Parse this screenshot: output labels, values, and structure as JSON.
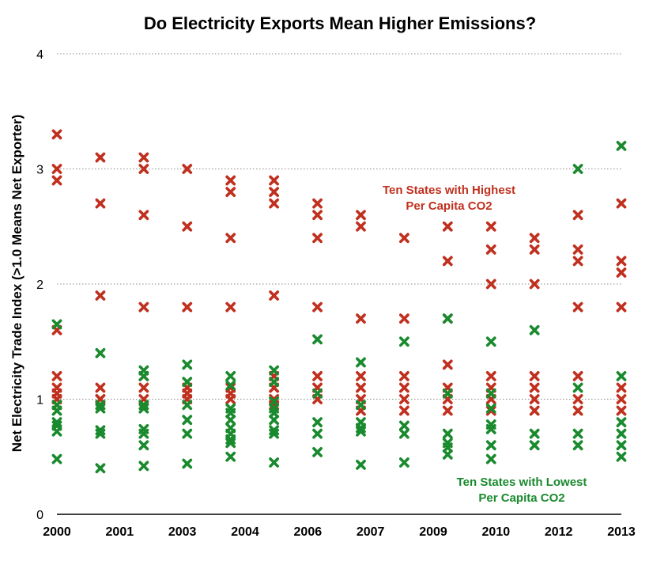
{
  "chart_data": {
    "type": "scatter",
    "title": "Do Electricity Exports Mean Higher Emissions?",
    "xlabel": "",
    "ylabel": "Net Electricity Trade Index (>1.0 Means Net Exporter)",
    "ylim": [
      0,
      4
    ],
    "yticks": [
      "0",
      "1",
      "2",
      "3",
      "4"
    ],
    "categories": [
      "2000",
      "2001",
      "2003",
      "2004",
      "2006",
      "2007",
      "2009",
      "2010",
      "2012",
      "2013"
    ],
    "x": [
      2000,
      2001,
      2002,
      2003,
      2004,
      2005,
      2006,
      2007,
      2008,
      2009,
      2010,
      2011,
      2012,
      2013
    ],
    "grid": true,
    "annotations": [
      {
        "lines": [
          "Ten States with Highest",
          "Per Capita CO2"
        ],
        "color": "#c0301e"
      },
      {
        "lines": [
          "Ten States with Lowest",
          "Per Capita CO2"
        ],
        "color": "#1a8a2e"
      }
    ],
    "series": [
      {
        "color": "#c0301e",
        "points": [
          [
            2000,
            [
              3.3,
              3.0,
              2.9,
              1.6,
              1.2,
              1.1,
              1.05,
              1.0,
              1.0,
              0.95
            ]
          ],
          [
            2001,
            [
              3.1,
              2.7,
              1.9,
              1.1,
              1.0,
              1.0,
              0.95
            ]
          ],
          [
            2002,
            [
              3.1,
              3.0,
              2.6,
              1.8,
              1.2,
              1.1,
              1.0,
              0.95
            ]
          ],
          [
            2003,
            [
              3.0,
              2.5,
              1.8,
              1.1,
              1.05,
              1.0
            ]
          ],
          [
            2004,
            [
              2.9,
              2.8,
              2.4,
              1.8,
              1.1,
              1.05,
              1.0
            ]
          ],
          [
            2005,
            [
              2.9,
              2.8,
              2.7,
              1.9,
              1.2,
              1.1,
              1.0,
              0.95
            ]
          ],
          [
            2006,
            [
              2.7,
              2.6,
              2.4,
              1.8,
              1.2,
              1.1,
              1.0
            ]
          ],
          [
            2007,
            [
              2.6,
              2.5,
              1.7,
              1.2,
              1.1,
              1.0,
              0.9
            ]
          ],
          [
            2008,
            [
              2.4,
              1.7,
              1.2,
              1.1,
              1.0,
              0.9
            ]
          ],
          [
            2009,
            [
              2.5,
              2.2,
              1.7,
              1.3,
              1.1,
              1.0,
              0.9
            ]
          ],
          [
            2010,
            [
              2.5,
              2.3,
              2.0,
              1.2,
              1.1,
              1.0,
              0.9
            ]
          ],
          [
            2011,
            [
              2.4,
              2.3,
              2.0,
              1.2,
              1.1,
              1.0,
              0.9
            ]
          ],
          [
            2012,
            [
              2.6,
              2.3,
              2.2,
              1.8,
              1.2,
              1.0,
              0.9
            ]
          ],
          [
            2013,
            [
              2.7,
              2.2,
              2.1,
              1.8,
              1.1,
              1.0,
              0.9
            ]
          ]
        ]
      },
      {
        "color": "#1a8a2e",
        "points": [
          [
            2000,
            [
              1.65,
              0.95,
              0.9,
              0.8,
              0.77,
              0.72,
              0.48
            ]
          ],
          [
            2001,
            [
              1.4,
              0.95,
              0.92,
              0.73,
              0.7,
              0.4
            ]
          ],
          [
            2002,
            [
              1.25,
              1.2,
              0.95,
              0.92,
              0.74,
              0.7,
              0.6,
              0.42
            ]
          ],
          [
            2003,
            [
              1.3,
              1.15,
              0.95,
              0.82,
              0.7,
              0.44
            ]
          ],
          [
            2004,
            [
              1.2,
              1.12,
              0.92,
              0.88,
              0.82,
              0.75,
              0.7,
              0.65,
              0.62,
              0.5
            ]
          ],
          [
            2005,
            [
              1.25,
              1.15,
              0.98,
              0.92,
              0.88,
              0.82,
              0.73,
              0.7,
              0.45
            ]
          ],
          [
            2006,
            [
              1.52,
              1.05,
              0.8,
              0.7,
              0.54
            ]
          ],
          [
            2007,
            [
              1.32,
              0.95,
              0.8,
              0.75,
              0.72,
              0.43
            ]
          ],
          [
            2008,
            [
              1.5,
              0.77,
              0.7,
              0.45
            ]
          ],
          [
            2009,
            [
              1.7,
              1.05,
              0.7,
              0.62,
              0.58,
              0.52
            ]
          ],
          [
            2010,
            [
              1.5,
              1.05,
              0.92,
              0.78,
              0.74,
              0.6,
              0.48
            ]
          ],
          [
            2011,
            [
              1.6,
              0.7,
              0.6
            ]
          ],
          [
            2012,
            [
              3.0,
              1.1,
              0.7,
              0.6
            ]
          ],
          [
            2013,
            [
              3.2,
              1.2,
              0.8,
              0.7,
              0.6,
              0.5
            ]
          ]
        ]
      }
    ]
  }
}
